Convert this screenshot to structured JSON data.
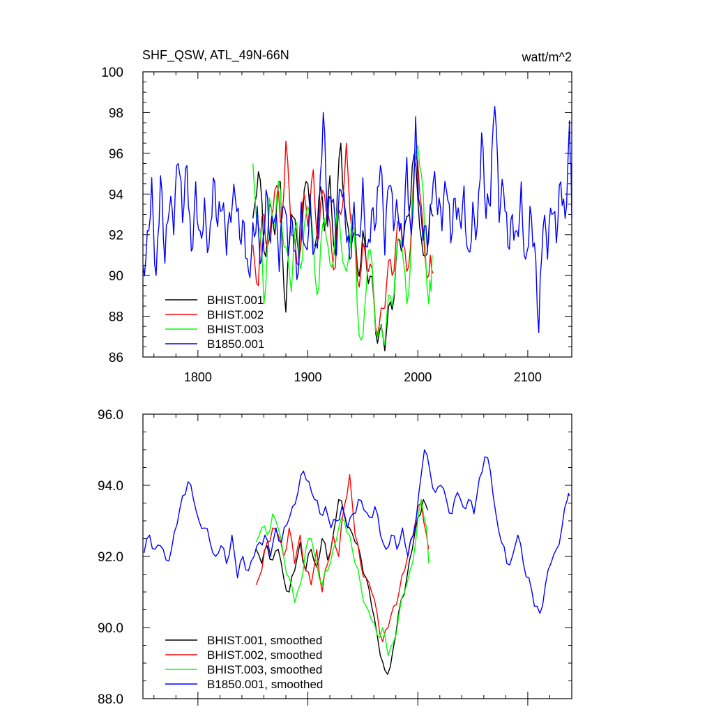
{
  "chart_data": [
    {
      "type": "line",
      "title": "SHF_QSW, ATL_49N-66N",
      "units": "watt/m^2",
      "xlim": [
        1750,
        2140
      ],
      "ylim": [
        86,
        100
      ],
      "x_ticks": [
        1800,
        1900,
        2000,
        2100
      ],
      "x_tick_labels": [
        "1800",
        "1900",
        "2000",
        "2100"
      ],
      "y_ticks": [
        86,
        88,
        90,
        92,
        94,
        96,
        98,
        100
      ],
      "y_tick_labels": [
        "86",
        "88",
        "90",
        "92",
        "94",
        "96",
        "98",
        "100"
      ],
      "legend_position": "bottom-left",
      "series": [
        {
          "name": "BHIST.001",
          "color": "#000000",
          "x": [
            1850,
            1855,
            1860,
            1865,
            1870,
            1875,
            1880,
            1885,
            1890,
            1895,
            1900,
            1905,
            1910,
            1915,
            1920,
            1925,
            1930,
            1935,
            1940,
            1945,
            1950,
            1955,
            1960,
            1965,
            1970,
            1975,
            1980,
            1985,
            1990,
            1995,
            2000,
            2005,
            2010,
            2014
          ],
          "y": [
            92.8,
            95.1,
            91.2,
            93.5,
            92.0,
            94.6,
            88.2,
            93.0,
            91.8,
            92.6,
            94.5,
            91.5,
            93.8,
            92.2,
            94.9,
            91.0,
            96.5,
            92.8,
            91.6,
            90.4,
            92.2,
            89.6,
            88.8,
            87.2,
            86.3,
            88.7,
            90.6,
            91.2,
            92.9,
            95.4,
            93.8,
            91.0,
            92.2,
            92.9
          ]
        },
        {
          "name": "BHIST.002",
          "color": "#ff0000",
          "x": [
            1850,
            1855,
            1860,
            1865,
            1870,
            1875,
            1880,
            1885,
            1890,
            1895,
            1900,
            1905,
            1910,
            1915,
            1920,
            1925,
            1930,
            1935,
            1940,
            1945,
            1950,
            1955,
            1960,
            1965,
            1970,
            1975,
            1980,
            1985,
            1990,
            1995,
            2000,
            2005,
            2010,
            2014
          ],
          "y": [
            91.5,
            89.5,
            93.0,
            91.8,
            94.2,
            92.6,
            96.6,
            92.0,
            90.6,
            93.5,
            92.4,
            95.2,
            91.8,
            94.0,
            92.6,
            90.4,
            93.0,
            96.5,
            92.2,
            89.8,
            91.6,
            90.2,
            89.0,
            87.6,
            88.4,
            90.8,
            91.6,
            92.2,
            90.2,
            93.6,
            95.6,
            92.2,
            90.0,
            90.1
          ]
        },
        {
          "name": "BHIST.003",
          "color": "#00ff00",
          "x": [
            1850,
            1855,
            1860,
            1865,
            1870,
            1875,
            1880,
            1885,
            1890,
            1895,
            1900,
            1905,
            1910,
            1915,
            1920,
            1925,
            1930,
            1935,
            1940,
            1945,
            1950,
            1955,
            1960,
            1965,
            1970,
            1975,
            1980,
            1985,
            1990,
            1995,
            2000,
            2005,
            2010,
            2013
          ],
          "y": [
            95.5,
            92.4,
            88.6,
            93.8,
            92.4,
            94.2,
            91.4,
            89.2,
            92.6,
            90.8,
            93.4,
            91.6,
            89.4,
            92.8,
            90.6,
            92.2,
            91.8,
            90.2,
            93.0,
            88.4,
            87.0,
            91.2,
            88.8,
            87.4,
            86.6,
            89.0,
            90.8,
            91.6,
            88.6,
            93.2,
            96.4,
            94.0,
            88.6,
            91.0
          ]
        },
        {
          "name": "B1850.001",
          "color": "#0000ff",
          "x": [
            1750,
            1754,
            1758,
            1762,
            1766,
            1770,
            1774,
            1778,
            1782,
            1786,
            1790,
            1794,
            1798,
            1802,
            1806,
            1810,
            1814,
            1818,
            1822,
            1826,
            1830,
            1834,
            1838,
            1842,
            1846,
            1850,
            1854,
            1858,
            1862,
            1866,
            1870,
            1874,
            1878,
            1882,
            1886,
            1890,
            1894,
            1898,
            1902,
            1906,
            1910,
            1914,
            1918,
            1922,
            1926,
            1930,
            1934,
            1938,
            1942,
            1946,
            1950,
            1954,
            1958,
            1962,
            1966,
            1970,
            1974,
            1978,
            1982,
            1986,
            1990,
            1994,
            1998,
            2002,
            2006,
            2010,
            2014,
            2018,
            2022,
            2026,
            2030,
            2034,
            2038,
            2042,
            2046,
            2050,
            2054,
            2058,
            2062,
            2066,
            2070,
            2074,
            2078,
            2082,
            2086,
            2090,
            2094,
            2098,
            2102,
            2106,
            2110,
            2114,
            2118,
            2122,
            2126,
            2130,
            2134,
            2138,
            2140
          ],
          "y": [
            90.5,
            92.2,
            94.8,
            90.0,
            94.9,
            90.6,
            93.2,
            92.0,
            95.5,
            92.6,
            95.4,
            91.2,
            94.6,
            92.2,
            93.8,
            91.4,
            94.8,
            92.4,
            93.2,
            91.0,
            92.6,
            93.8,
            91.8,
            92.6,
            90.2,
            92.6,
            93.4,
            90.8,
            94.2,
            91.6,
            92.8,
            90.2,
            93.4,
            91.0,
            92.6,
            89.8,
            93.6,
            91.4,
            94.0,
            91.2,
            92.8,
            98.0,
            92.4,
            93.6,
            91.0,
            94.2,
            92.6,
            90.8,
            93.6,
            92.0,
            94.8,
            91.4,
            93.2,
            92.6,
            95.4,
            91.0,
            94.4,
            92.2,
            93.0,
            91.4,
            95.8,
            92.0,
            97.8,
            93.4,
            92.4,
            91.8,
            94.6,
            93.0,
            92.2,
            94.2,
            91.6,
            93.8,
            92.8,
            94.4,
            91.2,
            93.6,
            92.4,
            97.0,
            92.8,
            93.4,
            98.3,
            92.6,
            94.2,
            91.4,
            93.0,
            92.2,
            94.6,
            90.8,
            93.4,
            91.6,
            87.2,
            92.4,
            90.8,
            93.0,
            91.6,
            94.6,
            92.8,
            97.6,
            92.8
          ]
        }
      ]
    },
    {
      "type": "line",
      "xlim": [
        1750,
        2140
      ],
      "ylim": [
        88,
        96
      ],
      "y_ticks": [
        88,
        90,
        92,
        94,
        96
      ],
      "y_tick_labels": [
        "88.0",
        "90.0",
        "92.0",
        "94.0",
        "96.0"
      ],
      "legend_position": "bottom-left",
      "series": [
        {
          "name": "BHIST.001, smoothed",
          "color": "#000000",
          "x": [
            1853,
            1858,
            1863,
            1868,
            1873,
            1878,
            1883,
            1888,
            1893,
            1898,
            1903,
            1908,
            1913,
            1918,
            1923,
            1928,
            1933,
            1938,
            1943,
            1948,
            1953,
            1958,
            1963,
            1966,
            1970,
            1975,
            1980,
            1985,
            1990,
            1995,
            2000,
            2005,
            2009
          ],
          "y": [
            92.2,
            91.8,
            92.3,
            91.9,
            92.2,
            91.4,
            91.0,
            91.6,
            92.4,
            91.6,
            92.2,
            91.7,
            92.5,
            91.9,
            92.6,
            93.6,
            93.2,
            92.8,
            92.4,
            92.0,
            91.4,
            90.6,
            89.8,
            89.2,
            88.8,
            88.9,
            89.8,
            90.8,
            91.4,
            92.2,
            93.1,
            93.6,
            93.3
          ]
        },
        {
          "name": "BHIST.002, smoothed",
          "color": "#ff0000",
          "x": [
            1853,
            1858,
            1863,
            1868,
            1873,
            1878,
            1883,
            1888,
            1893,
            1898,
            1903,
            1908,
            1913,
            1918,
            1923,
            1928,
            1933,
            1938,
            1943,
            1948,
            1953,
            1958,
            1963,
            1968,
            1973,
            1978,
            1983,
            1988,
            1993,
            1998,
            2003,
            2008,
            2010
          ],
          "y": [
            91.2,
            91.6,
            92.4,
            92.8,
            92.6,
            92.0,
            92.8,
            91.8,
            92.6,
            91.6,
            91.2,
            92.2,
            91.0,
            91.8,
            92.6,
            92.0,
            93.4,
            94.3,
            92.6,
            91.8,
            91.4,
            91.0,
            90.4,
            89.6,
            90.0,
            90.6,
            91.0,
            91.6,
            92.4,
            93.0,
            93.5,
            92.6,
            92.2
          ]
        },
        {
          "name": "BHIST.003, smoothed",
          "color": "#00ff00",
          "x": [
            1853,
            1858,
            1863,
            1868,
            1873,
            1878,
            1883,
            1888,
            1893,
            1898,
            1903,
            1908,
            1913,
            1918,
            1923,
            1928,
            1933,
            1938,
            1943,
            1948,
            1953,
            1958,
            1963,
            1968,
            1973,
            1978,
            1983,
            1988,
            1993,
            1998,
            2003,
            2008,
            2010
          ],
          "y": [
            92.4,
            92.8,
            92.6,
            93.2,
            92.8,
            92.0,
            91.4,
            90.7,
            91.2,
            92.2,
            92.5,
            91.8,
            91.2,
            91.6,
            92.2,
            92.8,
            93.0,
            92.6,
            91.8,
            91.2,
            90.6,
            90.2,
            89.8,
            90.0,
            89.2,
            89.6,
            90.4,
            91.0,
            91.6,
            92.4,
            93.6,
            92.8,
            91.8
          ]
        },
        {
          "name": "B1850.001, smoothed",
          "color": "#0000ff",
          "x": [
            1751,
            1756,
            1761,
            1766,
            1771,
            1776,
            1781,
            1786,
            1791,
            1796,
            1801,
            1806,
            1811,
            1816,
            1821,
            1826,
            1831,
            1836,
            1841,
            1846,
            1851,
            1856,
            1861,
            1866,
            1871,
            1876,
            1881,
            1886,
            1891,
            1896,
            1901,
            1906,
            1911,
            1916,
            1921,
            1926,
            1931,
            1936,
            1941,
            1946,
            1951,
            1956,
            1961,
            1966,
            1971,
            1976,
            1981,
            1986,
            1991,
            1996,
            2001,
            2006,
            2011,
            2016,
            2021,
            2026,
            2031,
            2036,
            2041,
            2046,
            2051,
            2056,
            2061,
            2066,
            2071,
            2076,
            2081,
            2086,
            2091,
            2096,
            2101,
            2106,
            2111,
            2116,
            2121,
            2126,
            2131,
            2136,
            2138
          ],
          "y": [
            92.1,
            92.6,
            92.2,
            92.3,
            91.9,
            92.2,
            92.9,
            93.7,
            94.1,
            93.6,
            93.0,
            92.8,
            92.4,
            92.0,
            92.3,
            91.8,
            92.6,
            91.4,
            92.0,
            91.6,
            92.0,
            92.4,
            92.6,
            92.0,
            92.8,
            92.4,
            92.9,
            93.4,
            93.8,
            94.4,
            94.1,
            93.6,
            93.2,
            93.4,
            92.8,
            93.0,
            93.4,
            92.8,
            93.2,
            93.6,
            93.3,
            93.1,
            93.4,
            92.6,
            92.2,
            92.6,
            92.2,
            92.8,
            92.0,
            92.6,
            93.8,
            95.0,
            94.4,
            93.8,
            94.0,
            93.6,
            93.2,
            93.8,
            93.4,
            93.6,
            93.2,
            94.2,
            94.8,
            94.4,
            93.2,
            92.4,
            91.8,
            92.0,
            92.6,
            91.8,
            91.4,
            90.6,
            90.4,
            91.2,
            91.8,
            92.2,
            92.8,
            93.6,
            93.7
          ]
        }
      ]
    }
  ]
}
